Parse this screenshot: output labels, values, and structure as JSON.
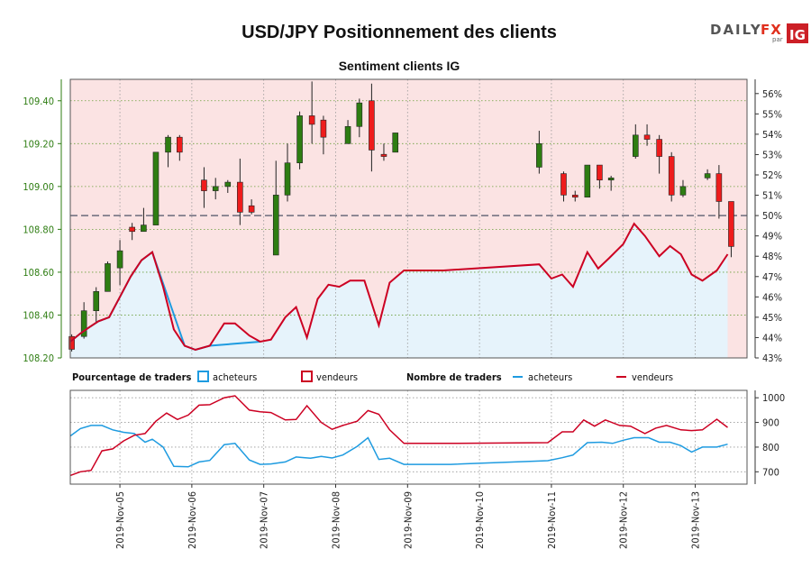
{
  "title": "USD/JPY Positionnement des clients",
  "subtitle": "Sentiment clients IG",
  "logo": {
    "brand_left": "DAILY",
    "brand_right": "FX",
    "par": "par",
    "ig": "IG"
  },
  "colors": {
    "buyers": "#1e9be0",
    "sellers": "#cc0022",
    "buy_bg": "#e6f3fb",
    "sell_bg": "#fbe3e3",
    "up_candle": "#2e7d12",
    "down_candle": "#ee1c1c",
    "axis_left": "#2e7d12"
  },
  "legend": {
    "pct_label": "Pourcentage de traders",
    "pct_buyers": "acheteurs",
    "pct_sellers": "vendeurs",
    "count_label": "Nombre de traders",
    "count_buyers": "acheteurs",
    "count_sellers": "vendeurs"
  },
  "chart_data": {
    "type": "candlestick+line",
    "price_ylim": [
      108.2,
      109.5
    ],
    "price_ticks": [
      "108.20",
      "108.40",
      "108.60",
      "108.80",
      "109.00",
      "109.20",
      "109.40"
    ],
    "pct_ticks": [
      "43%",
      "44%",
      "45%",
      "46%",
      "47%",
      "48%",
      "49%",
      "50%",
      "51%",
      "52%",
      "53%",
      "54%",
      "55%",
      "56%"
    ],
    "pct_ylim": [
      43,
      56.7
    ],
    "midline_pct": 50,
    "x_range": [
      4.31,
      13.72
    ],
    "x_dates": [
      5,
      6,
      7,
      8,
      9,
      10,
      11,
      12,
      13
    ],
    "x_labels": [
      "2019-Nov-05",
      "2019-Nov-06",
      "2019-Nov-07",
      "2019-Nov-08",
      "2019-Nov-09",
      "2019-Nov-10",
      "2019-Nov-11",
      "2019-Nov-12",
      "2019-Nov-13"
    ],
    "candles": [
      [
        4.33,
        108.3,
        108.24,
        108.23,
        108.31
      ],
      [
        4.5,
        108.3,
        108.42,
        108.29,
        108.46
      ],
      [
        4.67,
        108.42,
        108.51,
        108.36,
        108.53
      ],
      [
        4.83,
        108.51,
        108.64,
        108.51,
        108.65
      ],
      [
        5.0,
        108.62,
        108.7,
        108.54,
        108.75
      ],
      [
        5.17,
        108.81,
        108.79,
        108.75,
        108.83
      ],
      [
        5.33,
        108.79,
        108.82,
        108.79,
        108.9
      ],
      [
        5.5,
        108.82,
        109.16,
        108.82,
        109.16
      ],
      [
        5.67,
        109.16,
        109.23,
        109.09,
        109.24
      ],
      [
        5.83,
        109.23,
        109.16,
        109.12,
        109.24
      ],
      [
        6.17,
        109.03,
        108.98,
        108.9,
        109.09
      ],
      [
        6.33,
        108.98,
        109.0,
        108.94,
        109.04
      ],
      [
        6.5,
        109.0,
        109.02,
        108.97,
        109.03
      ],
      [
        6.67,
        109.02,
        108.88,
        108.82,
        109.13
      ],
      [
        6.83,
        108.91,
        108.88,
        108.87,
        108.94
      ],
      [
        7.17,
        108.68,
        108.96,
        108.68,
        109.12
      ],
      [
        7.33,
        108.96,
        109.11,
        108.93,
        109.2
      ],
      [
        7.5,
        109.11,
        109.33,
        109.08,
        109.35
      ],
      [
        7.67,
        109.33,
        109.29,
        109.2,
        109.49
      ],
      [
        7.83,
        109.31,
        109.23,
        109.15,
        109.33
      ],
      [
        8.17,
        109.2,
        109.28,
        109.2,
        109.31
      ],
      [
        8.33,
        109.28,
        109.39,
        109.23,
        109.41
      ],
      [
        8.5,
        109.4,
        109.17,
        109.07,
        109.48
      ],
      [
        8.67,
        109.15,
        109.14,
        109.12,
        109.2
      ],
      [
        8.83,
        109.16,
        109.25,
        109.16,
        109.25
      ],
      [
        10.83,
        109.09,
        109.2,
        109.06,
        109.26
      ],
      [
        11.17,
        109.06,
        108.96,
        108.93,
        109.07
      ],
      [
        11.33,
        108.96,
        108.95,
        108.93,
        108.98
      ],
      [
        11.5,
        108.95,
        109.1,
        108.95,
        109.1
      ],
      [
        11.67,
        109.1,
        109.03,
        108.99,
        109.1
      ],
      [
        11.83,
        109.03,
        109.04,
        108.98,
        109.05
      ],
      [
        12.17,
        109.14,
        109.24,
        109.13,
        109.29
      ],
      [
        12.33,
        109.24,
        109.22,
        109.19,
        109.29
      ],
      [
        12.5,
        109.22,
        109.14,
        109.06,
        109.24
      ],
      [
        12.67,
        109.14,
        108.96,
        108.93,
        109.16
      ],
      [
        12.83,
        108.96,
        109.0,
        108.95,
        109.03
      ],
      [
        13.17,
        109.04,
        109.06,
        109.03,
        109.08
      ],
      [
        13.33,
        109.06,
        108.93,
        108.85,
        109.1
      ],
      [
        13.5,
        108.93,
        108.72,
        108.67,
        108.93
      ]
    ],
    "sellers_pct": [
      [
        4.31,
        43.8
      ],
      [
        4.45,
        44.2
      ],
      [
        4.57,
        44.5
      ],
      [
        4.7,
        44.8
      ],
      [
        4.85,
        45.0
      ],
      [
        5.0,
        46.0
      ],
      [
        5.15,
        47.0
      ],
      [
        5.3,
        47.8
      ],
      [
        5.45,
        48.2
      ],
      [
        5.6,
        46.5
      ],
      [
        5.75,
        44.4
      ],
      [
        5.9,
        43.6
      ],
      [
        6.05,
        43.4
      ],
      [
        6.25,
        43.6
      ],
      [
        6.45,
        44.7
      ],
      [
        6.6,
        44.7
      ],
      [
        6.8,
        44.1
      ],
      [
        6.95,
        43.8
      ],
      [
        7.1,
        43.9
      ],
      [
        7.3,
        45.0
      ],
      [
        7.45,
        45.5
      ],
      [
        7.6,
        44.0
      ],
      [
        7.75,
        45.9
      ],
      [
        7.9,
        46.6
      ],
      [
        8.05,
        46.5
      ],
      [
        8.2,
        46.8
      ],
      [
        8.4,
        46.8
      ],
      [
        8.6,
        44.6
      ],
      [
        8.75,
        46.7
      ],
      [
        8.95,
        47.3
      ],
      [
        9.5,
        47.3
      ],
      [
        10.83,
        47.6
      ],
      [
        11.0,
        46.9
      ],
      [
        11.15,
        47.1
      ],
      [
        11.3,
        46.5
      ],
      [
        11.5,
        48.2
      ],
      [
        11.65,
        47.4
      ],
      [
        11.8,
        47.9
      ],
      [
        12.0,
        48.6
      ],
      [
        12.15,
        49.6
      ],
      [
        12.3,
        49.0
      ],
      [
        12.5,
        48.0
      ],
      [
        12.65,
        48.5
      ],
      [
        12.8,
        48.1
      ],
      [
        12.95,
        47.1
      ],
      [
        13.1,
        46.8
      ],
      [
        13.3,
        47.3
      ],
      [
        13.45,
        48.1
      ]
    ],
    "buyers_pct_note": "acheteurs = 100% - vendeurs",
    "count_ylim": [
      650,
      1030
    ],
    "count_ticks": [
      700,
      800,
      900,
      1000
    ],
    "buyers_count": [
      [
        4.31,
        845
      ],
      [
        4.45,
        875
      ],
      [
        4.6,
        888
      ],
      [
        4.75,
        888
      ],
      [
        4.9,
        870
      ],
      [
        5.05,
        860
      ],
      [
        5.2,
        855
      ],
      [
        5.35,
        820
      ],
      [
        5.45,
        832
      ],
      [
        5.6,
        800
      ],
      [
        5.75,
        722
      ],
      [
        5.95,
        720
      ],
      [
        6.1,
        740
      ],
      [
        6.25,
        746
      ],
      [
        6.45,
        810
      ],
      [
        6.6,
        815
      ],
      [
        6.8,
        748
      ],
      [
        6.95,
        730
      ],
      [
        7.1,
        732
      ],
      [
        7.3,
        740
      ],
      [
        7.45,
        760
      ],
      [
        7.65,
        755
      ],
      [
        7.8,
        762
      ],
      [
        7.95,
        756
      ],
      [
        8.1,
        768
      ],
      [
        8.3,
        803
      ],
      [
        8.45,
        838
      ],
      [
        8.6,
        750
      ],
      [
        8.75,
        755
      ],
      [
        8.95,
        730
      ],
      [
        9.6,
        730
      ],
      [
        10.95,
        745
      ],
      [
        11.15,
        757
      ],
      [
        11.3,
        768
      ],
      [
        11.5,
        818
      ],
      [
        11.7,
        820
      ],
      [
        11.85,
        815
      ],
      [
        12.0,
        828
      ],
      [
        12.15,
        838
      ],
      [
        12.35,
        838
      ],
      [
        12.5,
        820
      ],
      [
        12.65,
        820
      ],
      [
        12.8,
        806
      ],
      [
        12.95,
        780
      ],
      [
        13.1,
        800
      ],
      [
        13.3,
        800
      ],
      [
        13.45,
        812
      ]
    ],
    "sellers_count": [
      [
        4.31,
        685
      ],
      [
        4.45,
        700
      ],
      [
        4.6,
        706
      ],
      [
        4.75,
        785
      ],
      [
        4.9,
        793
      ],
      [
        5.05,
        825
      ],
      [
        5.2,
        848
      ],
      [
        5.35,
        855
      ],
      [
        5.5,
        905
      ],
      [
        5.65,
        938
      ],
      [
        5.8,
        912
      ],
      [
        5.95,
        930
      ],
      [
        6.1,
        970
      ],
      [
        6.25,
        972
      ],
      [
        6.45,
        1000
      ],
      [
        6.6,
        1008
      ],
      [
        6.8,
        950
      ],
      [
        6.95,
        943
      ],
      [
        7.1,
        940
      ],
      [
        7.3,
        910
      ],
      [
        7.45,
        912
      ],
      [
        7.6,
        968
      ],
      [
        7.8,
        900
      ],
      [
        7.95,
        872
      ],
      [
        8.1,
        888
      ],
      [
        8.3,
        905
      ],
      [
        8.45,
        948
      ],
      [
        8.6,
        933
      ],
      [
        8.75,
        870
      ],
      [
        8.95,
        815
      ],
      [
        9.6,
        815
      ],
      [
        10.95,
        818
      ],
      [
        11.15,
        862
      ],
      [
        11.3,
        862
      ],
      [
        11.45,
        910
      ],
      [
        11.6,
        885
      ],
      [
        11.75,
        910
      ],
      [
        11.95,
        888
      ],
      [
        12.1,
        885
      ],
      [
        12.3,
        855
      ],
      [
        12.45,
        877
      ],
      [
        12.6,
        888
      ],
      [
        12.8,
        870
      ],
      [
        12.95,
        867
      ],
      [
        13.1,
        870
      ],
      [
        13.3,
        913
      ],
      [
        13.45,
        880
      ]
    ]
  }
}
